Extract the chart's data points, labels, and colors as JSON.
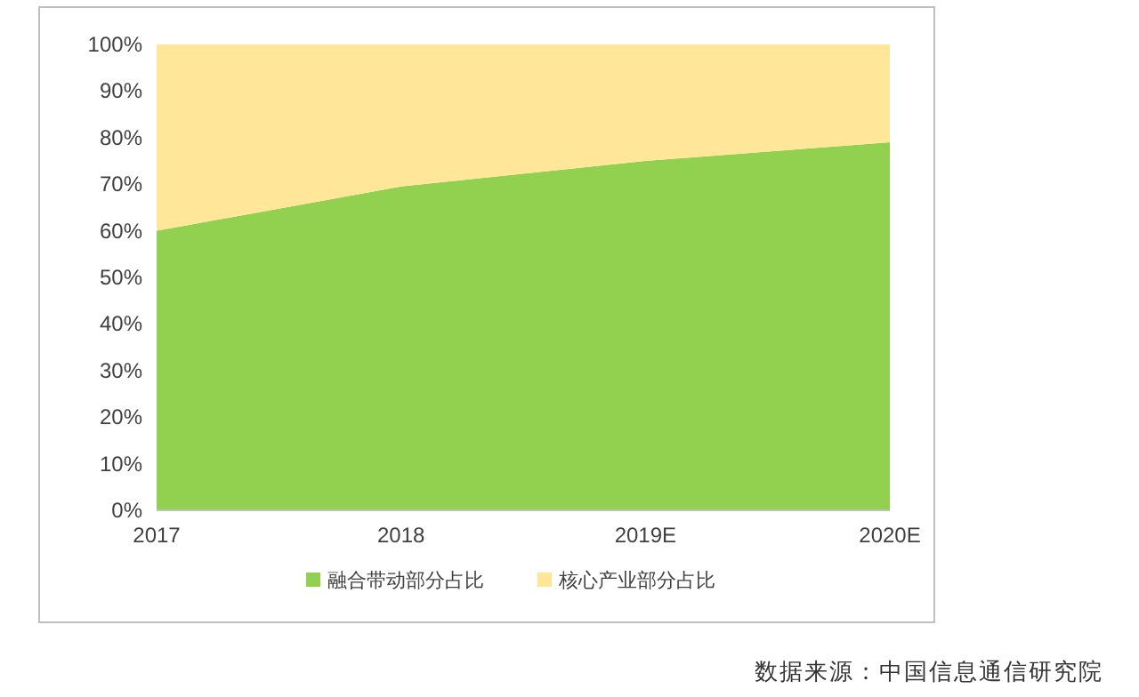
{
  "chart_data": {
    "type": "area",
    "stacked": true,
    "categories": [
      "2017",
      "2018",
      "2019E",
      "2020E"
    ],
    "series": [
      {
        "name": "融合带动部分占比",
        "color": "#92d050",
        "values": [
          60,
          69.5,
          75,
          79
        ]
      },
      {
        "name": "核心产业部分占比",
        "color": "#ffe699",
        "values": [
          40,
          30.5,
          25,
          21
        ]
      }
    ],
    "ylim": [
      0,
      100
    ],
    "yticks": [
      {
        "value": 0,
        "label": "0%"
      },
      {
        "value": 10,
        "label": "10%"
      },
      {
        "value": 20,
        "label": "20%"
      },
      {
        "value": 30,
        "label": "30%"
      },
      {
        "value": 40,
        "label": "40%"
      },
      {
        "value": 50,
        "label": "50%"
      },
      {
        "value": 60,
        "label": "60%"
      },
      {
        "value": 70,
        "label": "70%"
      },
      {
        "value": 80,
        "label": "80%"
      },
      {
        "value": 90,
        "label": "90%"
      },
      {
        "value": 100,
        "label": "100%"
      }
    ],
    "legend": "bottom",
    "annotations": [
      "数据来源：中国信息通信研究院"
    ]
  }
}
